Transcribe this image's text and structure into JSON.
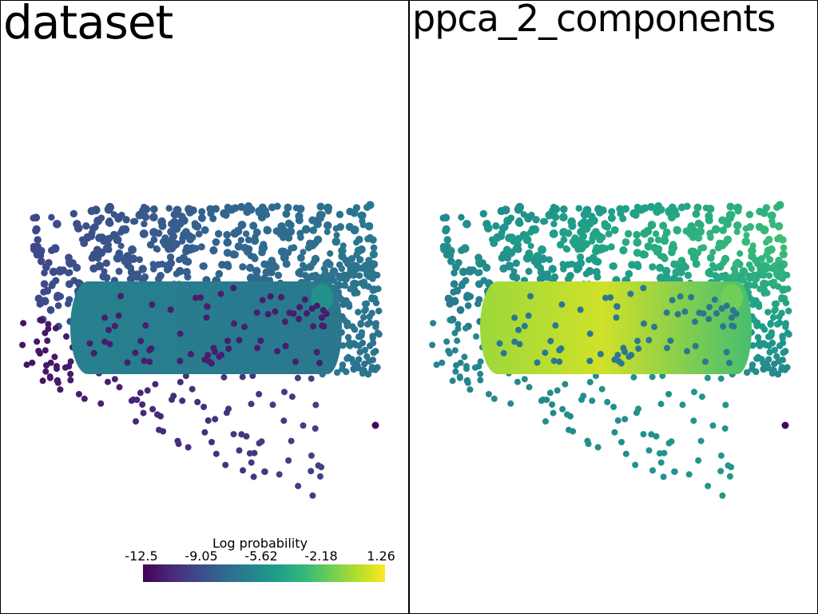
{
  "panels": {
    "left_title": "dataset",
    "right_title": "ppca_2_components"
  },
  "colorbar": {
    "label": "Log probability",
    "ticks": [
      "-12.5",
      "-9.05",
      "-5.62",
      "-2.18",
      "1.26"
    ],
    "min": -12.5,
    "max": 1.26
  },
  "colors": {
    "viridis": [
      "#440154",
      "#482878",
      "#3e4989",
      "#31688e",
      "#26828e",
      "#1f9e89",
      "#35b779",
      "#6ece58",
      "#b5de2b",
      "#fde725"
    ]
  }
}
